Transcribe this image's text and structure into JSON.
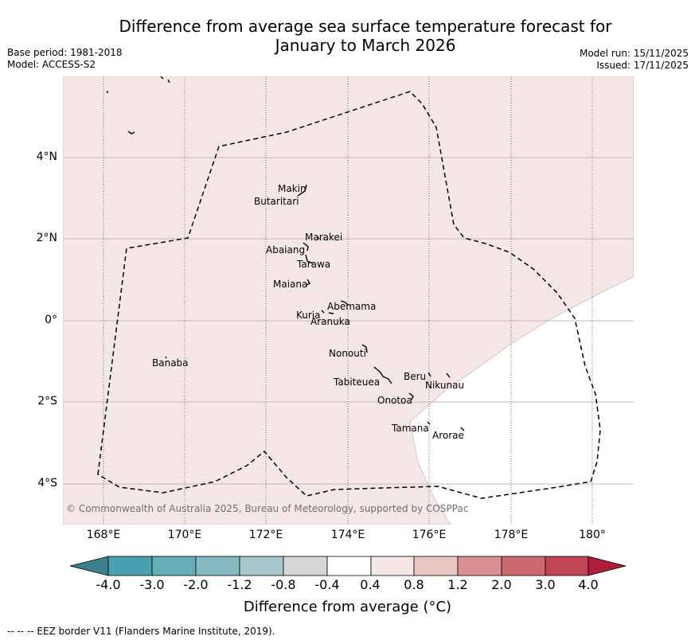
{
  "title_line1": "Difference from average sea surface temperature forecast for",
  "title_line2": "January to March 2026",
  "base_period": "Base period: 1981-2018",
  "model": "Model: ACCESS-S2",
  "model_run": "Model run: 15/11/2025",
  "issued": "Issued: 17/11/2025",
  "credit": "© Commonwealth of Australia 2025, Bureau of Meteorology, supported by COSPPac",
  "footer": "--  --  -- EEZ border V11 (Flanders Marine Institute, 2019).",
  "colorbar_title": "Difference from average (°C)",
  "colorbar_ticks": [
    "-4.0",
    "-3.0",
    "-2.0",
    "-1.2",
    "-0.8",
    "-0.4",
    "0.4",
    "0.8",
    "1.2",
    "2.0",
    "3.0",
    "4.0"
  ],
  "colorbar_colors": [
    "#3d7f8a",
    "#4aa0b0",
    "#67aebb",
    "#86b8c2",
    "#a7c7cc",
    "#d6d6d6",
    "#ffffff",
    "#f5e7e6",
    "#eac6c3",
    "#d98f94",
    "#cd6871",
    "#c24556",
    "#b01c3c"
  ],
  "lat_labels": [
    "4°N",
    "2°N",
    "0°",
    "2°S",
    "4°S"
  ],
  "lon_labels": [
    "168°E",
    "170°E",
    "172°E",
    "174°E",
    "176°E",
    "178°E",
    "180°"
  ],
  "islands": {
    "makin": "Makin",
    "butaritari": "Butaritari",
    "marakei": "Marakei",
    "abaiang": "Abaiang",
    "tarawa": "Tarawa",
    "maiana": "Maiana",
    "abemama": "Abemama",
    "kuria": "Kuria",
    "aranuka": "Aranuka",
    "nonouti": "Nonouti",
    "banaba": "Banaba",
    "beru": "Beru",
    "nikunau": "Nikunau",
    "tabiteuea": "Tabiteuea",
    "onotoa": "Onotoa",
    "tamana": "Tamana",
    "arorae": "Arorae"
  },
  "anomaly_fill_color": "#f5e7e6"
}
